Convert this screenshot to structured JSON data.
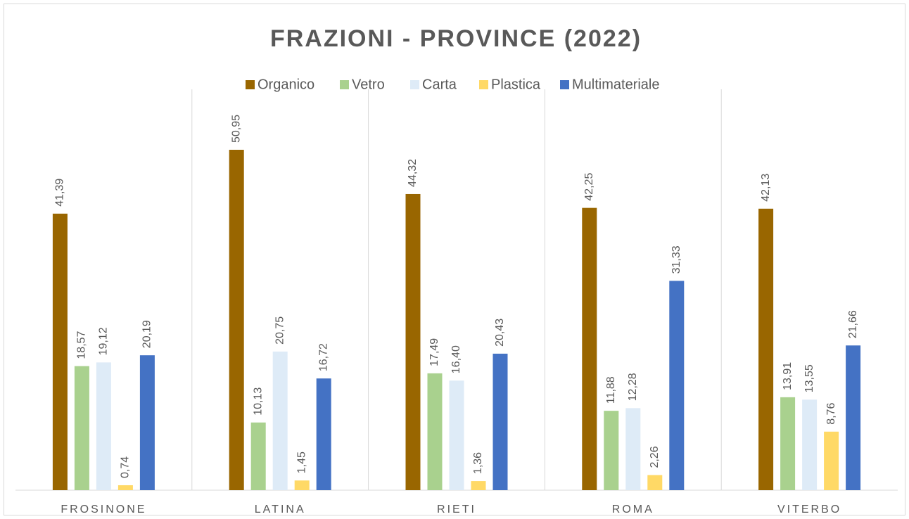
{
  "chart_data": {
    "type": "bar",
    "title": "FRAZIONI - PROVINCE (2022)",
    "categories": [
      "FROSINONE",
      "LATINA",
      "RIETI",
      "ROMA",
      "VITERBO"
    ],
    "series": [
      {
        "name": "Organico",
        "color": "#996600",
        "values": [
          41.39,
          50.95,
          44.32,
          42.25,
          42.13
        ],
        "value_labels": [
          "41,39",
          "50,95",
          "44,32",
          "42,25",
          "42,13"
        ]
      },
      {
        "name": "Vetro",
        "color": "#a9d18e",
        "values": [
          18.57,
          10.13,
          17.49,
          11.88,
          13.91
        ],
        "value_labels": [
          "18,57",
          "10,13",
          "17,49",
          "11,88",
          "13,91"
        ]
      },
      {
        "name": "Carta",
        "color": "#deebf7",
        "values": [
          19.12,
          20.75,
          16.4,
          12.28,
          13.55
        ],
        "value_labels": [
          "19,12",
          "20,75",
          "16,40",
          "12,28",
          "13,55"
        ]
      },
      {
        "name": "Plastica",
        "color": "#ffd966",
        "values": [
          0.74,
          1.45,
          1.36,
          2.26,
          8.76
        ],
        "value_labels": [
          "0,74",
          "1,45",
          "1,36",
          "2,26",
          "8,76"
        ]
      },
      {
        "name": "Multimateriale",
        "color": "#4472c4",
        "values": [
          20.19,
          16.72,
          20.43,
          31.33,
          21.66
        ],
        "value_labels": [
          "20,19",
          "16,72",
          "20,43",
          "31,33",
          "21,66"
        ]
      }
    ],
    "ylim": [
      0,
      60
    ],
    "legend": "top"
  }
}
